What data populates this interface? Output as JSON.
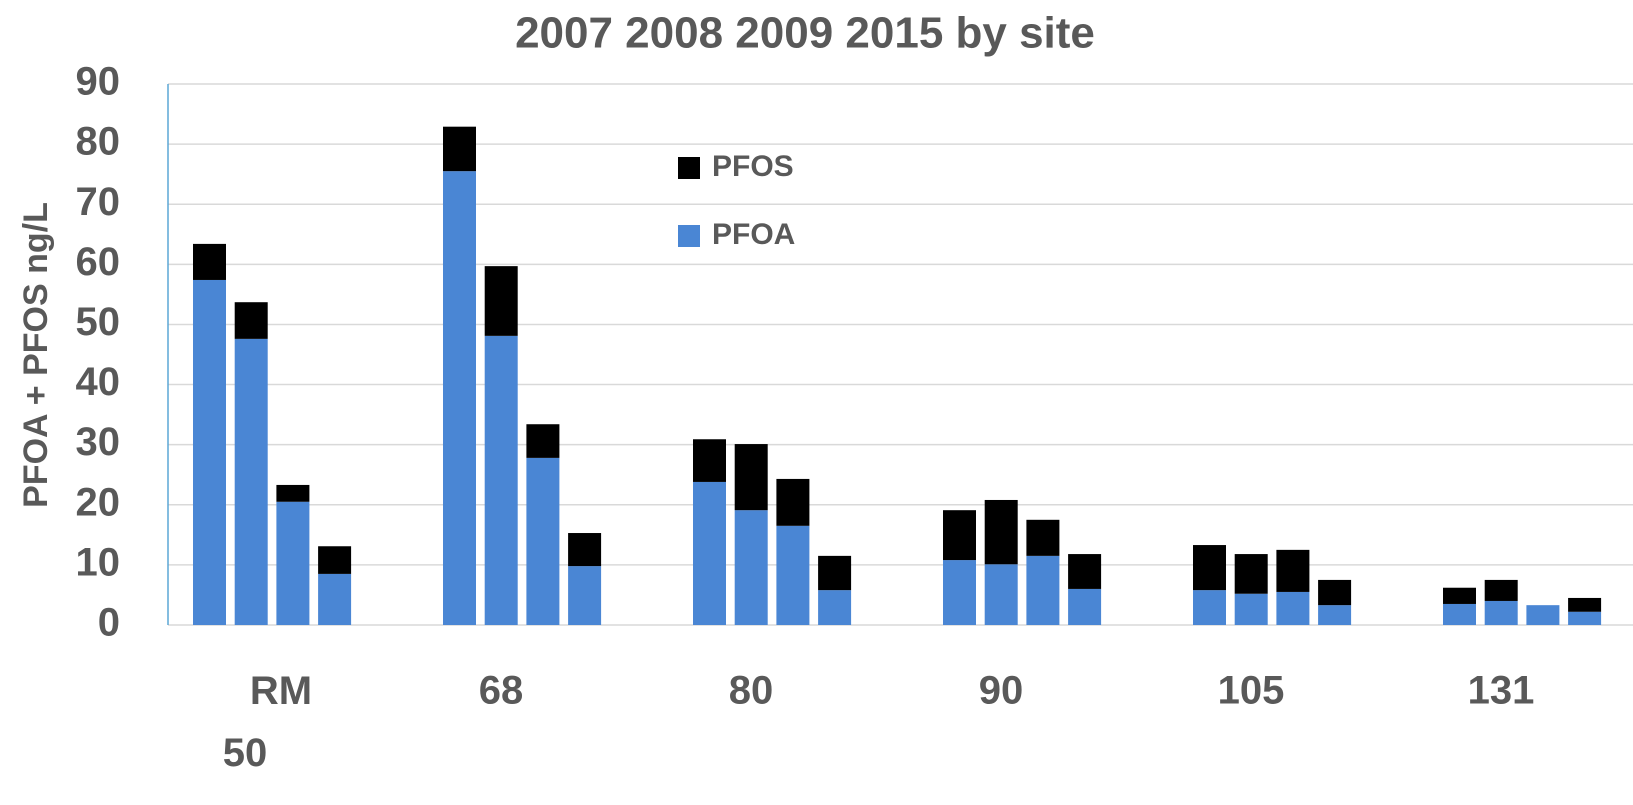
{
  "chart_data": {
    "type": "grouped-stacked-bar",
    "title": "2007 2008 2009 2015 by site",
    "y_label": "PFOA + PFOS ng/L",
    "categories": [
      "RM 50",
      "68",
      "80",
      "90",
      "105",
      "131"
    ],
    "series": [
      {
        "name": "PFOA",
        "color": "#4a86d4",
        "values": [
          [
            57.4,
            47.6,
            20.5,
            8.5
          ],
          [
            75.5,
            48.1,
            27.8,
            9.8
          ],
          [
            23.8,
            19.1,
            16.5,
            5.8
          ],
          [
            10.8,
            10.1,
            11.5,
            6.0
          ],
          [
            5.8,
            5.2,
            5.5,
            3.3
          ],
          [
            3.5,
            4.0,
            3.3,
            2.2
          ]
        ]
      },
      {
        "name": "PFOS",
        "color": "#000000",
        "values": [
          [
            6.0,
            6.1,
            2.8,
            4.6
          ],
          [
            7.4,
            11.6,
            5.6,
            5.5
          ],
          [
            7.1,
            11.0,
            7.8,
            5.7
          ],
          [
            8.3,
            10.7,
            6.0,
            5.8
          ],
          [
            7.5,
            6.6,
            7.0,
            4.2
          ],
          [
            2.7,
            3.5,
            0,
            2.3
          ]
        ]
      }
    ],
    "ylim": [
      0,
      90
    ],
    "yticks": [
      0,
      10,
      20,
      30,
      40,
      50,
      60,
      70,
      80,
      90
    ],
    "grid": true
  }
}
